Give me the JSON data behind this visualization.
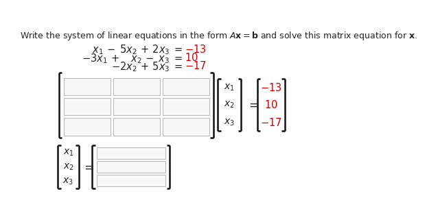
{
  "bg_color": "#ffffff",
  "text_color": "#222222",
  "red_color": "#cc0000",
  "box_edge_color": "#bbbbbb",
  "box_fill_color": "#f8f8f8",
  "bracket_color": "#111111",
  "title": "Write the system of linear equations in the form $A\\mathbf{x} = \\mathbf{b}$ and solve this matrix equation for $\\mathbf{x}$.",
  "eq1_lhs": "$x_1 - \\ \\ 5x_2 + 2x_3$",
  "eq2_lhs": "$-3x_1 + \\quad x_2 - \\ \\ x_3$",
  "eq3_lhs": "$\\qquad\\quad -2x_2 + 5x_3$",
  "rhs": [
    "$-13$",
    "$10$",
    "$-17$"
  ],
  "xvec": [
    "$x_1$",
    "$x_2$",
    "$x_3$"
  ],
  "bvec": [
    "$-13$",
    "$10$",
    "$-17$"
  ],
  "title_fs": 9.0,
  "eq_fs": 10.5,
  "vec_fs": 10.0,
  "bvec_fs": 10.5
}
